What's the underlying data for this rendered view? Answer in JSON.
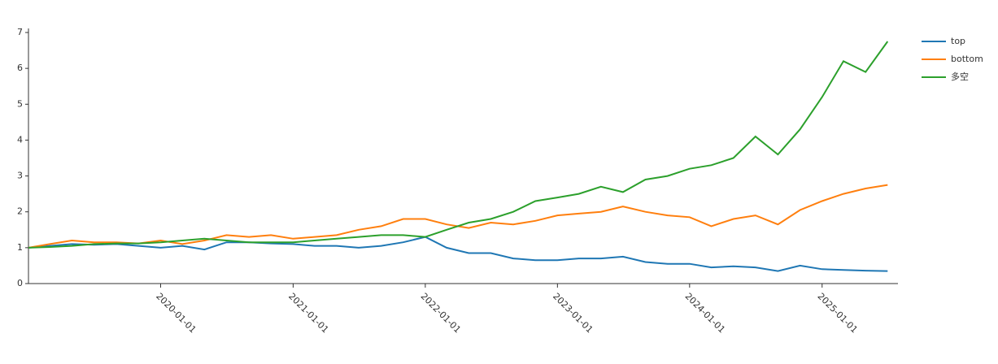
{
  "chart_data": {
    "type": "line",
    "x": [
      "2019-01-01",
      "2019-03-01",
      "2019-05-01",
      "2019-07-01",
      "2019-09-01",
      "2019-11-01",
      "2020-01-01",
      "2020-03-01",
      "2020-05-01",
      "2020-07-01",
      "2020-09-01",
      "2020-11-01",
      "2021-01-01",
      "2021-03-01",
      "2021-05-01",
      "2021-07-01",
      "2021-09-01",
      "2021-11-01",
      "2022-01-01",
      "2022-03-01",
      "2022-05-01",
      "2022-07-01",
      "2022-09-01",
      "2022-11-01",
      "2023-01-01",
      "2023-03-01",
      "2023-05-01",
      "2023-07-01",
      "2023-09-01",
      "2023-11-01",
      "2024-01-01",
      "2024-03-01",
      "2024-05-01",
      "2024-07-01",
      "2024-09-01",
      "2024-11-01",
      "2025-01-01",
      "2025-03-01",
      "2025-05-01",
      "2025-07-01"
    ],
    "series": [
      {
        "name": "top",
        "color": "#1f77b4",
        "values": [
          1.0,
          1.05,
          1.1,
          1.08,
          1.1,
          1.05,
          1.0,
          1.05,
          0.95,
          1.15,
          1.15,
          1.12,
          1.1,
          1.05,
          1.05,
          1.0,
          1.05,
          1.15,
          1.3,
          1.0,
          0.85,
          0.85,
          0.7,
          0.65,
          0.65,
          0.7,
          0.7,
          0.75,
          0.6,
          0.55,
          0.55,
          0.45,
          0.48,
          0.45,
          0.35,
          0.5,
          0.4,
          0.38,
          0.36,
          0.35
        ]
      },
      {
        "name": "bottom",
        "color": "#ff7f0e",
        "values": [
          1.0,
          1.1,
          1.2,
          1.15,
          1.15,
          1.12,
          1.2,
          1.1,
          1.2,
          1.35,
          1.3,
          1.35,
          1.25,
          1.3,
          1.35,
          1.5,
          1.6,
          1.8,
          1.8,
          1.65,
          1.55,
          1.7,
          1.65,
          1.75,
          1.9,
          1.95,
          2.0,
          2.15,
          2.0,
          1.9,
          1.85,
          1.6,
          1.8,
          1.9,
          1.65,
          2.05,
          2.3,
          2.5,
          2.65,
          2.75
        ]
      },
      {
        "name": "多空",
        "color": "#2ca02c",
        "values": [
          1.0,
          1.02,
          1.05,
          1.1,
          1.12,
          1.12,
          1.15,
          1.2,
          1.25,
          1.2,
          1.15,
          1.15,
          1.15,
          1.2,
          1.25,
          1.3,
          1.35,
          1.35,
          1.3,
          1.5,
          1.7,
          1.8,
          2.0,
          2.3,
          2.4,
          2.5,
          2.7,
          2.55,
          2.9,
          3.0,
          3.2,
          3.3,
          3.5,
          4.1,
          3.6,
          4.3,
          5.2,
          6.2,
          5.9,
          6.75
        ]
      }
    ],
    "xlim": [
      "2019-01-01",
      "2025-07-25"
    ],
    "xticks": [
      "2020-01-01",
      "2021-01-01",
      "2022-01-01",
      "2023-01-01",
      "2024-01-01",
      "2025-01-01"
    ],
    "ylim": [
      0,
      7
    ],
    "yticks": [
      0,
      1,
      2,
      3,
      4,
      5,
      6,
      7
    ],
    "legend": "right"
  }
}
